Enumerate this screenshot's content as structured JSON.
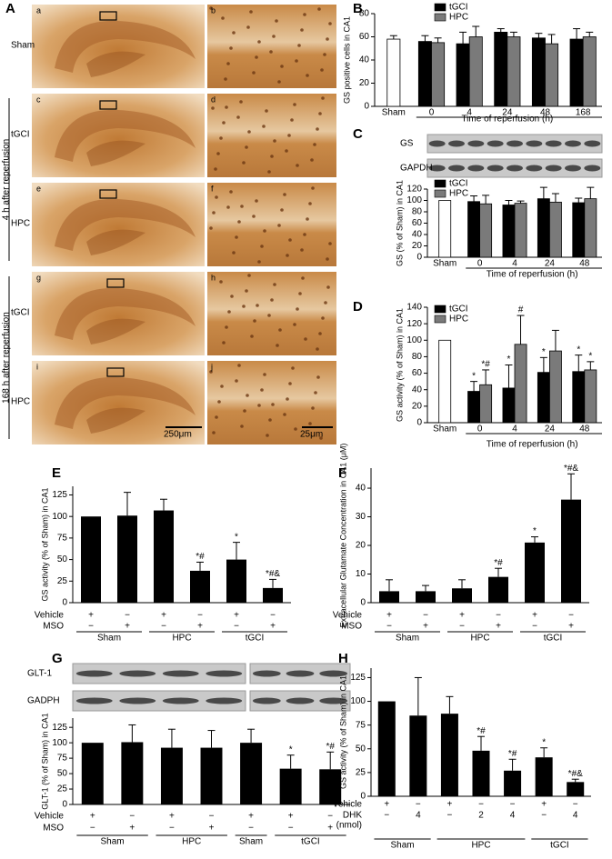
{
  "panel_a": {
    "panel": "A",
    "image_labels": [
      "a",
      "b",
      "c",
      "d",
      "e",
      "f",
      "g",
      "h",
      "i",
      "j"
    ],
    "rows": [
      "Sham",
      "tGCI",
      "HPC",
      "tGCI",
      "HPC"
    ],
    "groups": [
      "4 h after reperfusion",
      "168 h after reperfusion"
    ],
    "scale_bars": [
      "250μm",
      "25μm"
    ]
  },
  "chart_data": [
    {
      "type": "bar",
      "panel": "B",
      "ylabel": "GS positive cells in CA1",
      "xlabel": "Time of reperfusion (h)",
      "categories": [
        "Sham",
        "0",
        "4",
        "24",
        "48",
        "168"
      ],
      "series": [
        {
          "color": "#ffffff",
          "values": [
            58,
            null,
            null,
            null,
            null,
            null
          ],
          "errors": [
            3,
            null,
            null,
            null,
            null,
            null
          ]
        },
        {
          "name": "tGCI",
          "color": "#000000",
          "values": [
            null,
            56,
            54,
            64,
            59,
            58
          ],
          "errors": [
            null,
            5,
            10,
            3,
            4,
            9
          ]
        },
        {
          "name": "HPC",
          "color": "#7a7a7a",
          "values": [
            null,
            55,
            60,
            60,
            54,
            60
          ],
          "errors": [
            null,
            4,
            9,
            4,
            8,
            4
          ]
        }
      ],
      "ylim": [
        0,
        80
      ],
      "yticks": [
        0,
        20,
        40,
        60,
        80
      ]
    },
    {
      "type": "bar",
      "panel": "C",
      "ylabel": "GS (% of Sham) in CA1",
      "xlabel": "Time of reperfusion (h)",
      "blot_labels": [
        "GS",
        "GAPDH"
      ],
      "categories": [
        "Sham",
        "0",
        "4",
        "24",
        "48"
      ],
      "series": [
        {
          "color": "#ffffff",
          "values": [
            100,
            null,
            null,
            null,
            null
          ],
          "errors": [
            0,
            null,
            null,
            null,
            null
          ]
        },
        {
          "name": "tGCI",
          "color": "#000000",
          "values": [
            null,
            98,
            92,
            103,
            96
          ],
          "errors": [
            null,
            10,
            8,
            20,
            8
          ]
        },
        {
          "name": "HPC",
          "color": "#7a7a7a",
          "values": [
            null,
            94,
            95,
            97,
            103
          ],
          "errors": [
            null,
            15,
            4,
            15,
            20
          ]
        }
      ],
      "ylim": [
        0,
        120
      ],
      "yticks": [
        0,
        20,
        40,
        60,
        80,
        100,
        120
      ]
    },
    {
      "type": "bar",
      "panel": "D",
      "ylabel": "GS activity (% of Sham) in CA1",
      "xlabel": "Time of reperfusion (h)",
      "categories": [
        "Sham",
        "0",
        "4",
        "24",
        "48"
      ],
      "series": [
        {
          "color": "#ffffff",
          "values": [
            100,
            null,
            null,
            null,
            null
          ],
          "errors": [
            0,
            null,
            null,
            null,
            null
          ]
        },
        {
          "name": "tGCI",
          "color": "#000000",
          "values": [
            null,
            38,
            42,
            61,
            62
          ],
          "errors": [
            null,
            12,
            28,
            18,
            20
          ],
          "annotations": [
            null,
            "*",
            "*",
            "*",
            "*"
          ]
        },
        {
          "name": "HPC",
          "color": "#7a7a7a",
          "values": [
            null,
            46,
            95,
            87,
            64
          ],
          "errors": [
            null,
            18,
            35,
            25,
            10
          ],
          "annotations": [
            null,
            "*#",
            "#",
            null,
            "*"
          ]
        }
      ],
      "ylim": [
        0,
        140
      ],
      "yticks": [
        0,
        20,
        40,
        60,
        80,
        100,
        120,
        140
      ]
    },
    {
      "type": "bar",
      "panel": "E",
      "ylabel": "GS activity (% of Sham) in CA1",
      "color": "#000000",
      "values": [
        100,
        101,
        107,
        37,
        50,
        17
      ],
      "errors": [
        0,
        27,
        13,
        10,
        20,
        10
      ],
      "annotations": [
        null,
        null,
        null,
        "*#",
        "*",
        "*#&"
      ],
      "rows": [
        {
          "label": "Vehicle",
          "values": [
            "+",
            "−",
            "+",
            "−",
            "+",
            "−"
          ]
        },
        {
          "label": "MSO",
          "values": [
            "−",
            "+",
            "−",
            "+",
            "−",
            "+"
          ]
        }
      ],
      "groups": [
        "Sham",
        "HPC",
        "tGCI"
      ],
      "ylim": [
        0,
        135
      ],
      "yticks": [
        0,
        25,
        50,
        75,
        100,
        125
      ]
    },
    {
      "type": "bar",
      "panel": "F",
      "ylabel": "Extracellular Glutamate Concentration in CA1 (μM)",
      "color": "#000000",
      "values": [
        4,
        4,
        5,
        9,
        21,
        36
      ],
      "errors": [
        4,
        2,
        3,
        3,
        2,
        9
      ],
      "annotations": [
        null,
        null,
        null,
        "*#",
        "*",
        "*#&"
      ],
      "rows": [
        {
          "label": "Vehicle",
          "values": [
            "+",
            "−",
            "+",
            "−",
            "+",
            "−"
          ]
        },
        {
          "label": "MSO",
          "values": [
            "−",
            "+",
            "−",
            "+",
            "−",
            "+"
          ]
        }
      ],
      "groups": [
        "Sham",
        "HPC",
        "tGCI"
      ],
      "ylim": [
        0,
        47
      ],
      "yticks": [
        0,
        10,
        20,
        30,
        40
      ]
    },
    {
      "type": "bar",
      "panel": "G",
      "ylabel": "GLT-1 (% of Sham) in CA1",
      "color": "#000000",
      "blot_labels": [
        "GLT-1",
        "GADPH"
      ],
      "values": [
        100,
        101,
        92,
        92,
        100,
        58,
        57
      ],
      "errors": [
        0,
        28,
        30,
        28,
        22,
        22,
        28
      ],
      "annotations": [
        null,
        null,
        null,
        null,
        null,
        "*",
        "*#"
      ],
      "rows": [
        {
          "label": "Vehicle",
          "values": [
            "+",
            "−",
            "+",
            "−",
            "+",
            "+",
            "−"
          ]
        },
        {
          "label": "MSO",
          "values": [
            "−",
            "+",
            "−",
            "+",
            "−",
            "−",
            "+"
          ]
        }
      ],
      "groups": [
        "Sham",
        "HPC",
        "Sham",
        "tGCI"
      ],
      "ylim": [
        0,
        140
      ],
      "yticks": [
        0,
        25,
        50,
        75,
        100,
        125
      ]
    },
    {
      "type": "bar",
      "panel": "H",
      "ylabel": "GS activity (% of Sham) in CA1",
      "color": "#000000",
      "values": [
        100,
        85,
        87,
        48,
        27,
        41,
        15
      ],
      "errors": [
        0,
        40,
        18,
        15,
        12,
        10,
        3
      ],
      "annotations": [
        null,
        null,
        null,
        "*#",
        "*#",
        "*",
        "*#&"
      ],
      "rows": [
        {
          "label": "Vehicle",
          "values": [
            "+",
            "−",
            "+",
            "−",
            "−",
            "+",
            "−"
          ]
        },
        {
          "label": "DHK",
          "unit": "(nmol)",
          "values": [
            "−",
            "4",
            "−",
            "2",
            "4",
            "−",
            "4"
          ]
        }
      ],
      "groups": [
        "Sham",
        "HPC",
        "tGCI"
      ],
      "ylim": [
        0,
        135
      ],
      "yticks": [
        0,
        25,
        50,
        75,
        100,
        125
      ]
    }
  ]
}
